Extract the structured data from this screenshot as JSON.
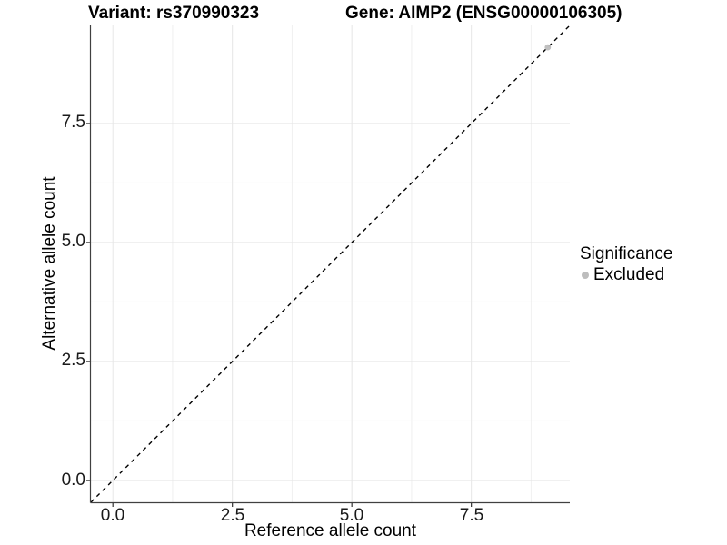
{
  "chart_data": {
    "type": "scatter",
    "title": {
      "variant": "Variant: rs370990323",
      "gene": "Gene: AIMP2 (ENSG00000106305)"
    },
    "xlabel": "Reference allele count",
    "ylabel": "Alternative allele count",
    "xlim": [
      -0.46,
      9.56
    ],
    "ylim": [
      -0.46,
      9.56
    ],
    "x_major_ticks": [
      0.0,
      2.5,
      5.0,
      7.5
    ],
    "x_tick_labels": [
      "0.0",
      "2.5",
      "5.0",
      "7.5"
    ],
    "y_major_ticks": [
      0.0,
      2.5,
      5.0,
      7.5
    ],
    "y_tick_labels": [
      "0.0",
      "2.5",
      "5.0",
      "7.5"
    ],
    "minor_gridlines": [
      1.25,
      3.75,
      6.25,
      8.75
    ],
    "grid": "major and minor gridlines on, light gray on white panel",
    "identity_line": {
      "type": "abline",
      "slope": 1,
      "intercept": 0,
      "style": "dashed",
      "color": "#000000"
    },
    "points": [
      {
        "x": 9.1,
        "y": 9.1,
        "series": "Excluded"
      }
    ],
    "legend": {
      "title": "Significance",
      "position": "right",
      "items": [
        {
          "label": "Excluded",
          "color": "#bdbdbd"
        }
      ]
    },
    "colors": {
      "background": "#ffffff",
      "grid_major": "#e6e6e6",
      "grid_minor": "#f0f0f0",
      "axis_line": "#404040",
      "tick_mark": "#333333",
      "point_excluded": "#bdbdbd",
      "dashed_line": "#000000"
    }
  }
}
